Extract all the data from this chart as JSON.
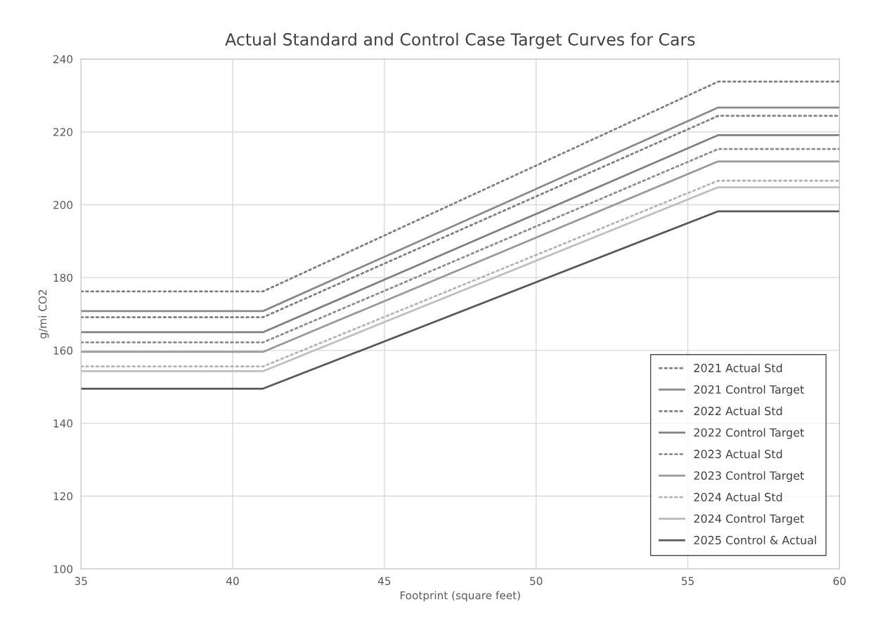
{
  "chart_data": {
    "type": "line",
    "title": "Actual Standard and Control Case Target Curves for Cars",
    "xlabel": "Footprint (square feet)",
    "ylabel": "g/mi CO2",
    "x": [
      35,
      41,
      56,
      60
    ],
    "xlim": [
      35,
      60
    ],
    "xticks": [
      35,
      40,
      45,
      50,
      55,
      60
    ],
    "ylim": [
      100,
      240
    ],
    "yticks": [
      100,
      120,
      140,
      160,
      180,
      200,
      220,
      240
    ],
    "grid": true,
    "legend": "bottom right",
    "marker": "none",
    "series": [
      {
        "name": "2021 Actual Std",
        "color": "#7f7f7f",
        "line_style": "dotted",
        "values": [
          176.2,
          176.2,
          233.8,
          233.8
        ]
      },
      {
        "name": "2021 Control Target",
        "color": "#8a8a8a",
        "line_style": "solid",
        "values": [
          170.8,
          170.8,
          226.7,
          226.7
        ]
      },
      {
        "name": "2022 Actual Std",
        "color": "#7f7f7f",
        "line_style": "dotted",
        "values": [
          169.1,
          169.1,
          224.4,
          224.4
        ]
      },
      {
        "name": "2022 Control Target",
        "color": "#808080",
        "line_style": "solid",
        "values": [
          165.0,
          165.0,
          219.1,
          219.1
        ]
      },
      {
        "name": "2023 Actual Std",
        "color": "#8c8c8c",
        "line_style": "dotted",
        "values": [
          162.2,
          162.2,
          215.3,
          215.3
        ]
      },
      {
        "name": "2023 Control Target",
        "color": "#999999",
        "line_style": "solid",
        "values": [
          159.6,
          159.6,
          211.9,
          211.9
        ]
      },
      {
        "name": "2024 Actual Std",
        "color": "#b4b4b4",
        "line_style": "dotted",
        "values": [
          155.6,
          155.6,
          206.6,
          206.6
        ]
      },
      {
        "name": "2024 Control Target",
        "color": "#bfbfbf",
        "line_style": "solid",
        "values": [
          154.3,
          154.3,
          204.8,
          204.8
        ]
      },
      {
        "name": "2025 Control & Actual",
        "color": "#595959",
        "line_style": "solid",
        "values": [
          149.5,
          149.5,
          198.2,
          198.2
        ]
      }
    ]
  }
}
